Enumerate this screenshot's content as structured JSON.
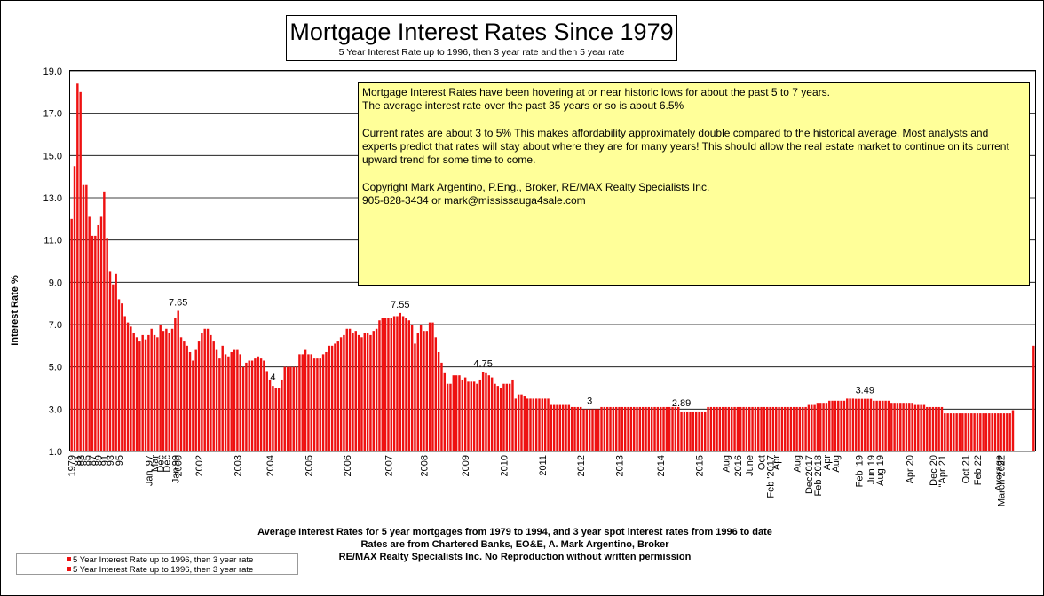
{
  "title": "Mortgage Interest Rates Since 1979",
  "subtitle": "5 Year Interest Rate up to 1996, then 3 year rate and then 5 year rate",
  "note": {
    "p1": "Mortgage Interest Rates have been hovering at or near historic lows for about the past  5 to 7 years.",
    "p2": "The average interest rate over the past 35 years or so is about 6.5%",
    "p3": "Current rates are about 3 to 5%  This makes affordability approximately double compared to the  historical average.  Most analysts and experts predict that rates will stay about where they are for many years!  This should allow the real estate market to continue on its current upward trend for some time to come.",
    "p4": "Copyright Mark Argentino, P.Eng., Broker, RE/MAX Realty Specialists Inc.",
    "p5": "905-828-3434  or mark@mississauga4sale.com"
  },
  "footer": {
    "line1": "Average Interest Rates for 5 year mortgages from 1979 to 1994, and 3 year spot interest rates from 1996 to date",
    "line2": "Rates are from Chartered Banks, EO&E, A. Mark Argentino, Broker",
    "line3": "RE/MAX Realty Specialists Inc. No Reproduction without written permission"
  },
  "legend": {
    "item1": "5 Year Interest Rate up to 1996, then 3 year rate",
    "item2": "5 Year Interest Rate up to 1996, then 3 year rate"
  },
  "colors": {
    "bar": "#ee1111",
    "note_bg": "#ffff99",
    "grid": "#000000"
  },
  "chart_data": {
    "type": "bar",
    "ylabel": "Interest Rate %",
    "ylim": [
      1.0,
      19.0
    ],
    "yticks": [
      "1.0",
      "3.0",
      "5.0",
      "7.0",
      "9.0",
      "11.0",
      "13.0",
      "15.0",
      "17.0",
      "19.0"
    ],
    "grid": true,
    "series": [
      {
        "name": "5 Year Interest Rate up to 1996, then 3 year rate",
        "values": [
          12.0,
          14.5,
          18.4,
          18.0,
          13.6,
          13.6,
          12.1,
          11.2,
          11.2,
          11.7,
          12.1,
          13.3,
          11.1,
          9.5,
          8.9,
          9.4,
          8.2,
          8.0,
          7.4,
          7.1,
          6.9,
          6.6,
          6.4,
          6.2,
          6.5,
          6.3,
          6.5,
          6.8,
          6.5,
          6.4,
          7.0,
          6.7,
          6.8,
          6.6,
          6.8,
          7.3,
          7.65,
          6.4,
          6.2,
          6.0,
          5.7,
          5.3,
          5.8,
          6.2,
          6.6,
          6.8,
          6.8,
          6.5,
          6.2,
          5.8,
          5.4,
          6.0,
          5.6,
          5.5,
          5.7,
          5.8,
          5.8,
          5.6,
          5.0,
          5.2,
          5.3,
          5.3,
          5.4,
          5.5,
          5.4,
          5.3,
          4.8,
          4.4,
          4.1,
          4.0,
          4.0,
          4.4,
          5.0,
          5.0,
          5.0,
          5.0,
          5.0,
          5.6,
          5.6,
          5.8,
          5.6,
          5.6,
          5.4,
          5.4,
          5.4,
          5.6,
          5.7,
          6.0,
          6.0,
          6.1,
          6.2,
          6.4,
          6.5,
          6.8,
          6.8,
          6.6,
          6.7,
          6.5,
          6.4,
          6.6,
          6.6,
          6.5,
          6.7,
          6.8,
          7.2,
          7.3,
          7.3,
          7.3,
          7.3,
          7.4,
          7.4,
          7.55,
          7.4,
          7.3,
          7.2,
          7.0,
          6.1,
          6.6,
          7.0,
          6.7,
          6.7,
          7.1,
          7.1,
          6.4,
          5.7,
          5.2,
          4.7,
          4.2,
          4.2,
          4.6,
          4.6,
          4.6,
          4.4,
          4.5,
          4.3,
          4.3,
          4.3,
          4.2,
          4.4,
          4.75,
          4.7,
          4.6,
          4.5,
          4.2,
          4.1,
          4.0,
          4.2,
          4.2,
          4.2,
          4.4,
          3.5,
          3.7,
          3.7,
          3.6,
          3.5,
          3.5,
          3.5,
          3.5,
          3.5,
          3.5,
          3.5,
          3.5,
          3.2,
          3.2,
          3.2,
          3.2,
          3.2,
          3.2,
          3.2,
          3.1,
          3.1,
          3.1,
          3.1,
          3.0,
          3.0,
          3.0,
          3.0,
          3.0,
          3.0,
          3.1,
          3.1,
          3.1,
          3.1,
          3.1,
          3.1,
          3.1,
          3.1,
          3.1,
          3.1,
          3.1,
          3.1,
          3.1,
          3.1,
          3.1,
          3.1,
          3.1,
          3.1,
          3.1,
          3.1,
          3.1,
          3.1,
          3.1,
          3.1,
          3.1,
          3.1,
          3.1,
          2.89,
          2.89,
          2.89,
          2.89,
          2.89,
          2.89,
          2.89,
          2.89,
          2.89,
          3.1,
          3.1,
          3.1,
          3.1,
          3.1,
          3.1,
          3.1,
          3.1,
          3.1,
          3.1,
          3.1,
          3.1,
          3.1,
          3.1,
          3.1,
          3.1,
          3.1,
          3.1,
          3.1,
          3.1,
          3.1,
          3.1,
          3.1,
          3.1,
          3.1,
          3.1,
          3.1,
          3.1,
          3.1,
          3.1,
          3.1,
          3.1,
          3.1,
          3.1,
          3.2,
          3.2,
          3.2,
          3.3,
          3.3,
          3.3,
          3.3,
          3.4,
          3.4,
          3.4,
          3.4,
          3.4,
          3.4,
          3.5,
          3.5,
          3.5,
          3.49,
          3.49,
          3.49,
          3.49,
          3.49,
          3.49,
          3.4,
          3.4,
          3.4,
          3.4,
          3.4,
          3.4,
          3.3,
          3.3,
          3.3,
          3.3,
          3.3,
          3.3,
          3.3,
          3.3,
          3.2,
          3.2,
          3.2,
          3.2,
          3.1,
          3.1,
          3.1,
          3.1,
          3.1,
          3.1,
          2.8,
          2.8,
          2.8,
          2.8,
          2.8,
          2.8,
          2.8,
          2.8,
          2.8,
          2.8,
          2.8,
          2.8,
          2.8,
          2.8,
          2.8,
          2.8,
          2.8,
          2.8,
          2.8,
          2.8,
          2.8,
          2.8,
          2.8,
          2.95,
          null,
          null,
          null,
          null,
          null,
          null,
          6.0
        ]
      }
    ],
    "data_labels": [
      {
        "index": 36,
        "text": "7.65"
      },
      {
        "index": 68,
        "text": "4"
      },
      {
        "index": 111,
        "text": "7.55"
      },
      {
        "index": 139,
        "text": "4.75"
      },
      {
        "index": 175,
        "text": "3"
      },
      {
        "index": 206,
        "text": "2.89"
      },
      {
        "index": 268,
        "text": "3.49"
      }
    ],
    "x_tick_labels": [
      {
        "index": 0,
        "text": "1979"
      },
      {
        "index": 2,
        "text": "81"
      },
      {
        "index": 3,
        "text": "83"
      },
      {
        "index": 5,
        "text": "85"
      },
      {
        "index": 7,
        "text": "87"
      },
      {
        "index": 9,
        "text": "89"
      },
      {
        "index": 11,
        "text": "91"
      },
      {
        "index": 13,
        "text": "93"
      },
      {
        "index": 16,
        "text": "95"
      },
      {
        "index": 26,
        "text": "Jan '97"
      },
      {
        "index": 28,
        "text": "Mar"
      },
      {
        "index": 30,
        "text": "Dec"
      },
      {
        "index": 32,
        "text": "Dec"
      },
      {
        "index": 35,
        "text": "Jan'99"
      },
      {
        "index": 36,
        "text": "2000"
      },
      {
        "index": 43,
        "text": "2002"
      },
      {
        "index": 56,
        "text": "2003"
      },
      {
        "index": 67,
        "text": "2004"
      },
      {
        "index": 80,
        "text": "2005"
      },
      {
        "index": 93,
        "text": "2006"
      },
      {
        "index": 107,
        "text": "2007"
      },
      {
        "index": 119,
        "text": "2008"
      },
      {
        "index": 133,
        "text": "2009"
      },
      {
        "index": 146,
        "text": "2010"
      },
      {
        "index": 159,
        "text": "2011"
      },
      {
        "index": 172,
        "text": "2012"
      },
      {
        "index": 185,
        "text": "2013"
      },
      {
        "index": 199,
        "text": "2014"
      },
      {
        "index": 212,
        "text": "2015"
      },
      {
        "index": 221,
        "text": "Aug"
      },
      {
        "index": 225,
        "text": "2016"
      },
      {
        "index": 229,
        "text": "June"
      },
      {
        "index": 233,
        "text": "Oct"
      },
      {
        "index": 236,
        "text": "Feb '2017"
      },
      {
        "index": 238,
        "text": "Apr"
      },
      {
        "index": 245,
        "text": "Aug"
      },
      {
        "index": 249,
        "text": "Dec2017"
      },
      {
        "index": 252,
        "text": "Feb 2018"
      },
      {
        "index": 255,
        "text": "Apr"
      },
      {
        "index": 258,
        "text": "Aug"
      },
      {
        "index": 266,
        "text": "Feb '19"
      },
      {
        "index": 270,
        "text": "Jun 19"
      },
      {
        "index": 273,
        "text": "Aug 19"
      },
      {
        "index": 283,
        "text": "Apr 20"
      },
      {
        "index": 291,
        "text": "Dec 20"
      },
      {
        "index": 294,
        "text": "\"Apr 21"
      },
      {
        "index": 302,
        "text": "Oct 21"
      },
      {
        "index": 306,
        "text": "Feb 22"
      },
      {
        "index": 313,
        "text": "Average"
      },
      {
        "index": 314,
        "text": "March 2022"
      }
    ]
  }
}
